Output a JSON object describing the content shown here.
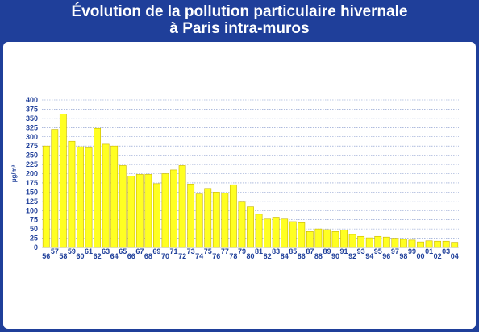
{
  "header": {
    "title_line1": "Évolution de la pollution particulaire hivernale",
    "title_line2": "à Paris intra-muros"
  },
  "colors": {
    "frame": "#1f3f9a",
    "bar_fill": "#ffff22",
    "bar_stroke": "#c9b400",
    "grid": "#7f93c9",
    "text": "#1f3f9a"
  },
  "chart_data": {
    "type": "bar",
    "title": "Évolution de la pollution particulaire hivernale à Paris intra-muros",
    "xlabel": "",
    "ylabel": "µg/m³",
    "ylim": [
      0,
      400
    ],
    "yticks": [
      0,
      25,
      50,
      75,
      100,
      125,
      150,
      175,
      200,
      225,
      250,
      275,
      300,
      325,
      350,
      375,
      400
    ],
    "grid": true,
    "legend": "none",
    "categories": [
      "56",
      "57",
      "58",
      "59",
      "60",
      "61",
      "62",
      "63",
      "64",
      "65",
      "66",
      "67",
      "68",
      "69",
      "70",
      "71",
      "72",
      "73",
      "74",
      "75",
      "76",
      "77",
      "78",
      "79",
      "80",
      "81",
      "82",
      "83",
      "84",
      "85",
      "86",
      "87",
      "88",
      "89",
      "90",
      "91",
      "92",
      "93",
      "94",
      "95",
      "96",
      "97",
      "98",
      "99",
      "00",
      "01",
      "02",
      "03",
      "04"
    ],
    "values": [
      275,
      320,
      362,
      288,
      273,
      270,
      323,
      280,
      275,
      222,
      193,
      198,
      198,
      173,
      200,
      210,
      222,
      172,
      145,
      160,
      150,
      147,
      170,
      123,
      110,
      90,
      77,
      82,
      77,
      70,
      67,
      43,
      50,
      48,
      43,
      47,
      35,
      30,
      26,
      30,
      28,
      25,
      22,
      20,
      15,
      18,
      17,
      17,
      14
    ]
  }
}
